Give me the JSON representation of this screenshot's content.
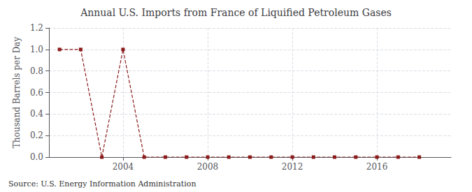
{
  "chart_data": {
    "type": "line",
    "title": "Annual U.S. Imports from France of Liquified Petroleum Gases",
    "ylabel": "Thousand Barrels per Day",
    "annotation": "Source: U.S. Energy Information Administration",
    "x": [
      2001,
      2002,
      2003,
      2004,
      2005,
      2006,
      2007,
      2008,
      2009,
      2010,
      2011,
      2012,
      2013,
      2014,
      2015,
      2016,
      2017,
      2018
    ],
    "values": [
      1,
      1,
      0,
      1,
      0,
      0,
      0,
      0,
      0,
      0,
      0,
      0,
      0,
      0,
      0,
      0,
      0,
      0
    ],
    "color": "#8b1a1a",
    "marker": "square",
    "line_style": "dashed",
    "xlim": [
      2000.5,
      2019.5
    ],
    "xticks": [
      2004,
      2008,
      2012,
      2016
    ],
    "ylim": [
      0,
      1.2
    ],
    "yticks": [
      {
        "value": 0,
        "label": "0.0"
      },
      0.2,
      0.4,
      0.6,
      0.8,
      {
        "value": 1,
        "label": "1.0"
      },
      1.2
    ],
    "grid": true
  }
}
